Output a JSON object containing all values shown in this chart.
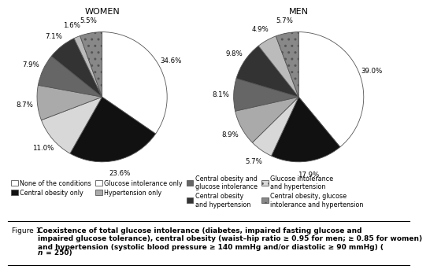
{
  "women_values": [
    34.6,
    23.6,
    11.0,
    8.7,
    7.9,
    7.1,
    1.6,
    5.5
  ],
  "men_values": [
    39.0,
    17.9,
    5.7,
    8.9,
    8.1,
    9.8,
    4.9,
    5.7
  ],
  "women_title": "WOMEN",
  "men_title": "MEN",
  "slice_colors": [
    "#ffffff",
    "#111111",
    "#d8d8d8",
    "#aaaaaa",
    "#666666",
    "#333333",
    "#bbbbbb",
    "#888888"
  ],
  "slice_hatches": [
    "",
    "",
    "",
    "",
    "",
    "",
    "",
    ".."
  ],
  "legend_row1_labels": [
    "None of the conditions",
    "Central obesity only",
    "Glucose intolerance only",
    "Hypertension only"
  ],
  "legend_row1_colors": [
    "#ffffff",
    "#111111",
    "#ffffff",
    "#aaaaaa"
  ],
  "legend_row1_hatches": [
    "",
    "",
    "",
    ""
  ],
  "legend_row1_edgecolors": [
    "#555555",
    "#111111",
    "#555555",
    "#aaaaaa"
  ],
  "legend_row2_labels": [
    "Central obesity and\nglucose intolerance",
    "Central obesity\nand hypertension",
    "Glucose intolerance\nand hypertension",
    "Central obesity, glucose\nintolerance and hypertension"
  ],
  "legend_row2_colors": [
    "#666666",
    "#333333",
    "#d8d8d8",
    "#888888"
  ],
  "legend_row2_hatches": [
    "",
    "",
    "..",
    ".."
  ],
  "caption_figure": "Figure 1 ",
  "caption_bold": "Coexistence of total glucose intolerance (diabetes, impaired fasting glucose and impaired glucose tolerance), central obesity (waist–hip ratio ≥ 0.95 for men; ≥ 0.85 for women) and hypertension (systolic blood pressure ≥ 140 mmHg and/or diastolic ≥ 90 mmHg) (",
  "caption_n": "n",
  "caption_end": " = 250)"
}
